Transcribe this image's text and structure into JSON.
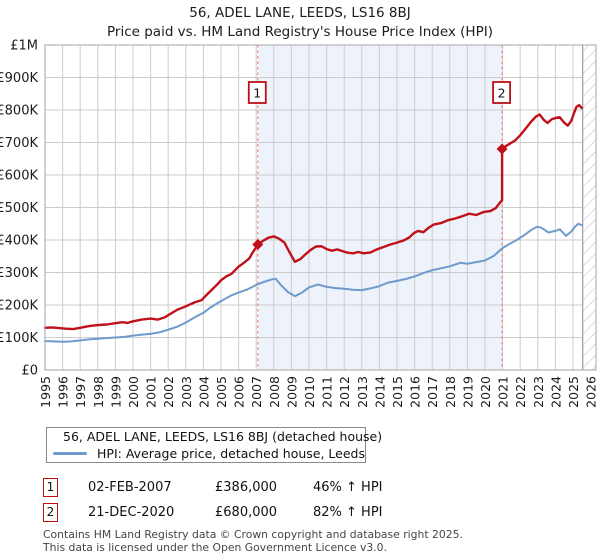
{
  "header": {
    "title": "56, ADEL LANE, LEEDS, LS16 8BJ",
    "subtitle": "Price paid vs. HM Land Registry's House Price Index (HPI)"
  },
  "legend": {
    "items": [
      {
        "label": "56, ADEL LANE, LEEDS, LS16 8BJ (detached house)",
        "color": "#c0101a"
      },
      {
        "label": "HPI: Average price, detached house, Leeds",
        "color": "#6e9bcc"
      }
    ]
  },
  "sales": [
    {
      "num": "1",
      "date": "02-FEB-2007",
      "price": "£386,000",
      "vs_hpi": "46% ↑ HPI"
    },
    {
      "num": "2",
      "date": "21-DEC-2020",
      "price": "£680,000",
      "vs_hpi": "82% ↑ HPI"
    }
  ],
  "footer": {
    "line1": "Contains HM Land Registry data © Crown copyright and database right 2025.",
    "line2": "This data is licensed under the Open Government Licence v3.0."
  },
  "chart_data": {
    "type": "line",
    "title": "56, ADEL LANE, LEEDS, LS16 8BJ",
    "subtitle": "Price paid vs. HM Land Registry's House Price Index (HPI)",
    "xlabel": "",
    "ylabel": "",
    "grid": true,
    "legend_position": "bottom",
    "x_axis": {
      "min": 1995,
      "max": 2026.35,
      "tick_labels": [
        "1995",
        "1996",
        "1997",
        "1998",
        "1999",
        "2000",
        "2001",
        "2002",
        "2003",
        "2004",
        "2005",
        "2006",
        "2007",
        "2008",
        "2009",
        "2010",
        "2011",
        "2012",
        "2013",
        "2014",
        "2015",
        "2016",
        "2017",
        "2018",
        "2019",
        "2020",
        "2021",
        "2022",
        "2023",
        "2024",
        "2025",
        "2026"
      ]
    },
    "y_axis": {
      "min": 0,
      "max": 1000000,
      "tick_step": 100000,
      "tick_labels": [
        "£0",
        "£100K",
        "£200K",
        "£300K",
        "£400K",
        "£500K",
        "£600K",
        "£700K",
        "£800K",
        "£900K",
        "£1M"
      ]
    },
    "series": [
      {
        "name": "56, ADEL LANE, LEEDS, LS16 8BJ (detached house)",
        "color": "#c0101a",
        "stroke_width": 2.4,
        "points": [
          [
            1995.0,
            130000
          ],
          [
            1995.4,
            131000
          ],
          [
            1995.8,
            129000
          ],
          [
            1996.2,
            127000
          ],
          [
            1996.6,
            126000
          ],
          [
            1997.0,
            130000
          ],
          [
            1997.5,
            135000
          ],
          [
            1998.0,
            138000
          ],
          [
            1998.5,
            140000
          ],
          [
            1999.0,
            144000
          ],
          [
            1999.4,
            147000
          ],
          [
            1999.7,
            145000
          ],
          [
            2000.0,
            150000
          ],
          [
            2000.5,
            155000
          ],
          [
            2001.0,
            158000
          ],
          [
            2001.4,
            155000
          ],
          [
            2001.8,
            162000
          ],
          [
            2002.1,
            172000
          ],
          [
            2002.5,
            185000
          ],
          [
            2003.0,
            196000
          ],
          [
            2003.5,
            208000
          ],
          [
            2003.9,
            215000
          ],
          [
            2004.2,
            232000
          ],
          [
            2004.5,
            248000
          ],
          [
            2004.8,
            264000
          ],
          [
            2005.0,
            276000
          ],
          [
            2005.3,
            288000
          ],
          [
            2005.6,
            296000
          ],
          [
            2006.0,
            318000
          ],
          [
            2006.3,
            330000
          ],
          [
            2006.6,
            343000
          ],
          [
            2006.8,
            362000
          ],
          [
            2007.09,
            386000
          ],
          [
            2007.4,
            398000
          ],
          [
            2007.7,
            407000
          ],
          [
            2008.0,
            411000
          ],
          [
            2008.3,
            404000
          ],
          [
            2008.6,
            392000
          ],
          [
            2008.9,
            362000
          ],
          [
            2009.2,
            333000
          ],
          [
            2009.5,
            341000
          ],
          [
            2009.8,
            356000
          ],
          [
            2010.1,
            370000
          ],
          [
            2010.4,
            380000
          ],
          [
            2010.7,
            381000
          ],
          [
            2011.0,
            372000
          ],
          [
            2011.3,
            367000
          ],
          [
            2011.6,
            371000
          ],
          [
            2011.9,
            366000
          ],
          [
            2012.2,
            361000
          ],
          [
            2012.5,
            359000
          ],
          [
            2012.8,
            363000
          ],
          [
            2013.1,
            359000
          ],
          [
            2013.5,
            362000
          ],
          [
            2013.8,
            370000
          ],
          [
            2014.2,
            378000
          ],
          [
            2014.6,
            386000
          ],
          [
            2015.0,
            392000
          ],
          [
            2015.4,
            399000
          ],
          [
            2015.7,
            408000
          ],
          [
            2015.95,
            421000
          ],
          [
            2016.2,
            428000
          ],
          [
            2016.5,
            424000
          ],
          [
            2016.8,
            438000
          ],
          [
            2017.1,
            448000
          ],
          [
            2017.5,
            452000
          ],
          [
            2017.9,
            461000
          ],
          [
            2018.3,
            466000
          ],
          [
            2018.7,
            473000
          ],
          [
            2019.1,
            481000
          ],
          [
            2019.5,
            477000
          ],
          [
            2019.9,
            486000
          ],
          [
            2020.3,
            489000
          ],
          [
            2020.6,
            498000
          ],
          [
            2020.85,
            515000
          ],
          [
            2020.97,
            522000
          ],
          [
            2020.97,
            680000
          ],
          [
            2021.1,
            686000
          ],
          [
            2021.4,
            696000
          ],
          [
            2021.7,
            706000
          ],
          [
            2022.0,
            722000
          ],
          [
            2022.3,
            742000
          ],
          [
            2022.6,
            763000
          ],
          [
            2022.9,
            780000
          ],
          [
            2023.1,
            786000
          ],
          [
            2023.35,
            769000
          ],
          [
            2023.55,
            760000
          ],
          [
            2023.8,
            772000
          ],
          [
            2024.05,
            776000
          ],
          [
            2024.25,
            778000
          ],
          [
            2024.5,
            761000
          ],
          [
            2024.7,
            752000
          ],
          [
            2024.9,
            766000
          ],
          [
            2025.05,
            790000
          ],
          [
            2025.2,
            810000
          ],
          [
            2025.35,
            815000
          ],
          [
            2025.5,
            806000
          ]
        ]
      },
      {
        "name": "HPI: Average price, detached house, Leeds",
        "color": "#6e9bcc",
        "stroke_width": 2,
        "points": [
          [
            1995.0,
            89000
          ],
          [
            1995.5,
            88000
          ],
          [
            1996.0,
            87000
          ],
          [
            1996.5,
            88000
          ],
          [
            1997.0,
            91000
          ],
          [
            1997.5,
            94000
          ],
          [
            1998.0,
            96000
          ],
          [
            1998.5,
            98000
          ],
          [
            1999.0,
            100000
          ],
          [
            1999.5,
            102000
          ],
          [
            2000.0,
            106000
          ],
          [
            2000.5,
            109000
          ],
          [
            2001.0,
            111000
          ],
          [
            2001.5,
            116000
          ],
          [
            2002.0,
            124000
          ],
          [
            2002.5,
            133000
          ],
          [
            2003.0,
            146000
          ],
          [
            2003.5,
            162000
          ],
          [
            2004.0,
            176000
          ],
          [
            2004.4,
            192000
          ],
          [
            2004.8,
            206000
          ],
          [
            2005.2,
            218000
          ],
          [
            2005.6,
            230000
          ],
          [
            2006.0,
            238000
          ],
          [
            2006.5,
            248000
          ],
          [
            2007.09,
            264000
          ],
          [
            2007.5,
            272000
          ],
          [
            2007.9,
            279000
          ],
          [
            2008.1,
            281000
          ],
          [
            2008.4,
            262000
          ],
          [
            2008.8,
            240000
          ],
          [
            2009.2,
            227000
          ],
          [
            2009.6,
            238000
          ],
          [
            2010.0,
            254000
          ],
          [
            2010.5,
            263000
          ],
          [
            2011.0,
            256000
          ],
          [
            2011.5,
            252000
          ],
          [
            2012.0,
            250000
          ],
          [
            2012.5,
            247000
          ],
          [
            2013.0,
            246000
          ],
          [
            2013.5,
            251000
          ],
          [
            2014.0,
            258000
          ],
          [
            2014.5,
            269000
          ],
          [
            2015.0,
            274000
          ],
          [
            2015.5,
            280000
          ],
          [
            2016.0,
            288000
          ],
          [
            2016.5,
            298000
          ],
          [
            2017.0,
            307000
          ],
          [
            2017.5,
            313000
          ],
          [
            2018.0,
            319000
          ],
          [
            2018.6,
            330000
          ],
          [
            2019.0,
            327000
          ],
          [
            2019.5,
            332000
          ],
          [
            2020.0,
            337000
          ],
          [
            2020.5,
            351000
          ],
          [
            2020.97,
            374000
          ],
          [
            2021.4,
            388000
          ],
          [
            2021.8,
            400000
          ],
          [
            2022.2,
            414000
          ],
          [
            2022.6,
            430000
          ],
          [
            2022.95,
            441000
          ],
          [
            2023.2,
            438000
          ],
          [
            2023.6,
            423000
          ],
          [
            2024.0,
            428000
          ],
          [
            2024.25,
            433000
          ],
          [
            2024.6,
            413000
          ],
          [
            2024.9,
            426000
          ],
          [
            2025.1,
            440000
          ],
          [
            2025.3,
            450000
          ],
          [
            2025.5,
            446000
          ]
        ]
      }
    ],
    "sale_markers": [
      {
        "num": "1",
        "x": 2007.09,
        "y": 386000,
        "date": "02-FEB-2007",
        "pct_vs_hpi": "46% ↑ HPI"
      },
      {
        "num": "2",
        "x": 2020.97,
        "y": 680000,
        "date": "21-DEC-2020",
        "pct_vs_hpi": "82% ↑ HPI"
      }
    ],
    "shaded_span": [
      2007.09,
      2020.97
    ],
    "hatched_span": [
      2025.55,
      2026.35
    ],
    "colors": {
      "sale_line": "#ee8888",
      "shade": "#eef2fa",
      "grid": "#cccccc",
      "border": "#a6a6a6",
      "hatch": "#c4c7d0",
      "marker_box_border": "#bb0f17",
      "axis_text": "#1c1c1c"
    }
  }
}
